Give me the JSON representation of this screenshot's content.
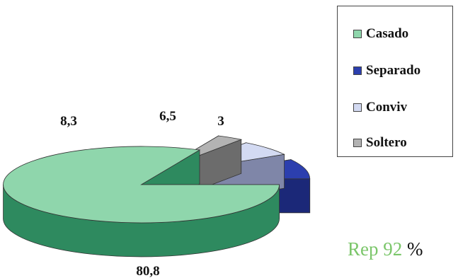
{
  "chart_data": {
    "type": "pie",
    "categories": [
      "Casado",
      "Separado",
      "Conviv",
      "Soltero"
    ],
    "values": [
      80.8,
      8.3,
      6.5,
      3
    ],
    "data_labels": [
      "80,8",
      "8,3",
      "6,5",
      "3"
    ],
    "colors": [
      "#8fd6ac",
      "#2c3fae",
      "#d3daf2",
      "#b3b3b3"
    ],
    "side_colors": [
      "#2e8a5f",
      "#1b2878",
      "#7f86a8",
      "#6c6c6c"
    ],
    "style": "3d-exploded",
    "legend_position": "right"
  },
  "note": {
    "prefix": "Rep 92",
    "suffix": " %"
  }
}
